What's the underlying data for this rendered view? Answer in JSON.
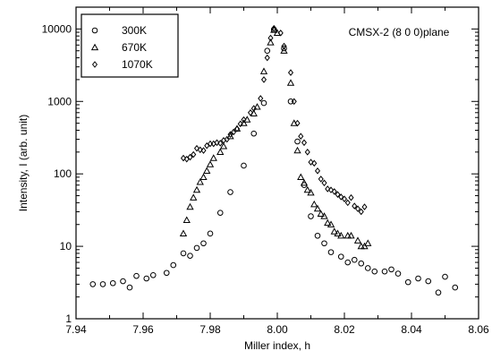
{
  "chart_data": {
    "type": "scatter",
    "title": "",
    "annotation": "CMSX-2 (8 0 0)plane",
    "xlabel": "Miller index, h",
    "ylabel": "Intensity, I (arb. unit)",
    "xlim": [
      7.94,
      8.06
    ],
    "ylim": [
      1,
      20000
    ],
    "yscale": "log",
    "grid": false,
    "legend_position": "top-left",
    "xticks": [
      "7.94",
      "7.96",
      "7.98",
      "8.00",
      "8.02",
      "8.04",
      "8.06"
    ],
    "yticks": [
      "1",
      "10",
      "100",
      "1000",
      "10000"
    ],
    "series": [
      {
        "name": "300K",
        "marker": "circle",
        "points": [
          [
            7.945,
            3.0
          ],
          [
            7.948,
            3.0
          ],
          [
            7.951,
            3.1
          ],
          [
            7.954,
            3.3
          ],
          [
            7.956,
            2.7
          ],
          [
            7.958,
            3.9
          ],
          [
            7.961,
            3.6
          ],
          [
            7.963,
            4.0
          ],
          [
            7.967,
            4.3
          ],
          [
            7.969,
            5.5
          ],
          [
            7.972,
            8.0
          ],
          [
            7.974,
            7.4
          ],
          [
            7.976,
            9.5
          ],
          [
            7.978,
            11
          ],
          [
            7.98,
            15
          ],
          [
            7.983,
            29
          ],
          [
            7.986,
            56
          ],
          [
            7.99,
            130
          ],
          [
            7.993,
            360
          ],
          [
            7.996,
            950
          ],
          [
            7.997,
            5000
          ],
          [
            7.999,
            9800
          ],
          [
            8.002,
            5400
          ],
          [
            8.004,
            1000
          ],
          [
            8.006,
            280
          ],
          [
            8.008,
            70
          ],
          [
            8.01,
            26
          ],
          [
            8.012,
            14
          ],
          [
            8.014,
            11
          ],
          [
            8.016,
            8.3
          ],
          [
            8.019,
            7.2
          ],
          [
            8.021,
            6.0
          ],
          [
            8.023,
            6.5
          ],
          [
            8.025,
            5.8
          ],
          [
            8.027,
            5.0
          ],
          [
            8.029,
            4.5
          ],
          [
            8.032,
            4.5
          ],
          [
            8.034,
            4.8
          ],
          [
            8.036,
            4.2
          ],
          [
            8.039,
            3.2
          ],
          [
            8.042,
            3.6
          ],
          [
            8.045,
            3.3
          ],
          [
            8.048,
            2.3
          ],
          [
            8.05,
            3.8
          ],
          [
            8.053,
            2.7
          ]
        ]
      },
      {
        "name": "670K",
        "marker": "triangle",
        "points": [
          [
            7.972,
            15
          ],
          [
            7.973,
            23
          ],
          [
            7.974,
            35
          ],
          [
            7.975,
            47
          ],
          [
            7.976,
            60
          ],
          [
            7.977,
            77
          ],
          [
            7.978,
            90
          ],
          [
            7.979,
            110
          ],
          [
            7.98,
            135
          ],
          [
            7.981,
            165
          ],
          [
            7.983,
            200
          ],
          [
            7.984,
            240
          ],
          [
            7.986,
            330
          ],
          [
            7.988,
            420
          ],
          [
            7.99,
            500
          ],
          [
            7.991,
            560
          ],
          [
            7.993,
            680
          ],
          [
            7.994,
            840
          ],
          [
            7.996,
            2600
          ],
          [
            7.998,
            6500
          ],
          [
            7.999,
            9700
          ],
          [
            8.0,
            8800
          ],
          [
            8.002,
            5000
          ],
          [
            8.004,
            1800
          ],
          [
            8.005,
            500
          ],
          [
            8.006,
            210
          ],
          [
            8.007,
            90
          ],
          [
            8.008,
            75
          ],
          [
            8.009,
            60
          ],
          [
            8.01,
            55
          ],
          [
            8.011,
            38
          ],
          [
            8.012,
            33
          ],
          [
            8.013,
            28
          ],
          [
            8.014,
            26
          ],
          [
            8.015,
            21
          ],
          [
            8.016,
            20
          ],
          [
            8.017,
            16
          ],
          [
            8.018,
            15
          ],
          [
            8.019,
            14
          ],
          [
            8.021,
            14
          ],
          [
            8.022,
            14
          ],
          [
            8.024,
            12
          ],
          [
            8.025,
            10
          ],
          [
            8.026,
            10
          ],
          [
            8.027,
            11
          ]
        ]
      },
      {
        "name": "1070K",
        "marker": "diamond",
        "points": [
          [
            7.972,
            165
          ],
          [
            7.973,
            160
          ],
          [
            7.974,
            170
          ],
          [
            7.975,
            185
          ],
          [
            7.976,
            225
          ],
          [
            7.977,
            215
          ],
          [
            7.978,
            210
          ],
          [
            7.979,
            245
          ],
          [
            7.98,
            260
          ],
          [
            7.981,
            260
          ],
          [
            7.982,
            270
          ],
          [
            7.983,
            265
          ],
          [
            7.984,
            290
          ],
          [
            7.985,
            300
          ],
          [
            7.986,
            350
          ],
          [
            7.987,
            380
          ],
          [
            7.988,
            420
          ],
          [
            7.989,
            490
          ],
          [
            7.99,
            560
          ],
          [
            7.992,
            700
          ],
          [
            7.993,
            800
          ],
          [
            7.995,
            1100
          ],
          [
            7.996,
            2000
          ],
          [
            7.997,
            4000
          ],
          [
            7.998,
            7500
          ],
          [
            7.999,
            10200
          ],
          [
            8.001,
            8800
          ],
          [
            8.002,
            5800
          ],
          [
            8.004,
            2500
          ],
          [
            8.005,
            1000
          ],
          [
            8.006,
            500
          ],
          [
            8.007,
            330
          ],
          [
            8.008,
            270
          ],
          [
            8.009,
            200
          ],
          [
            8.01,
            145
          ],
          [
            8.011,
            140
          ],
          [
            8.012,
            110
          ],
          [
            8.013,
            85
          ],
          [
            8.014,
            75
          ],
          [
            8.015,
            62
          ],
          [
            8.016,
            60
          ],
          [
            8.017,
            57
          ],
          [
            8.018,
            52
          ],
          [
            8.019,
            48
          ],
          [
            8.02,
            45
          ],
          [
            8.021,
            40
          ],
          [
            8.022,
            47
          ],
          [
            8.023,
            36
          ],
          [
            8.024,
            33
          ],
          [
            8.025,
            30
          ],
          [
            8.026,
            35
          ]
        ]
      }
    ]
  }
}
